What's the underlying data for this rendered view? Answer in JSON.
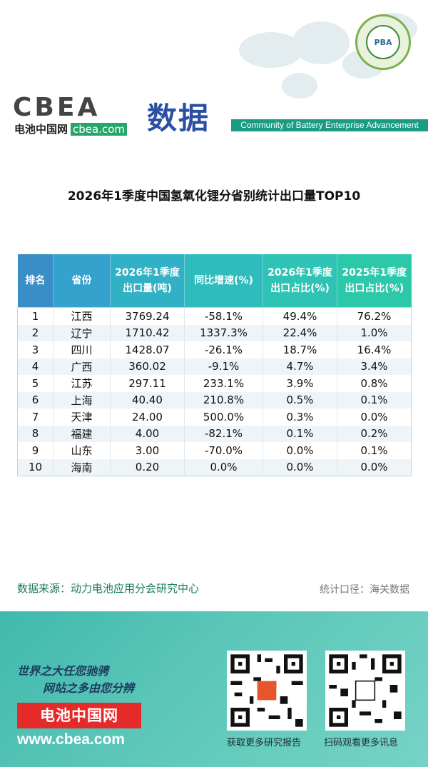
{
  "header": {
    "logo_text": "CBEA",
    "logo_cn": "电池中国网",
    "logo_domain": "cbea.com",
    "section_title": "数据",
    "community": "Community of Battery Enterprise Advancement",
    "badge_text": "PBA"
  },
  "title": "2026年1季度中国氢氧化锂分省别统计出口量TOP10",
  "table": {
    "headers": [
      "排名",
      "省份",
      "2026年1季度出口量(吨)",
      "同比增速(%)",
      "2026年1季度出口占比(%)",
      "2025年1季度出口占比(%)"
    ],
    "rows": [
      {
        "rank": "1",
        "province": "江西",
        "volume": "3769.24",
        "yoy": "-58.1%",
        "share_2026": "49.4%",
        "share_2025": "76.2%"
      },
      {
        "rank": "2",
        "province": "辽宁",
        "volume": "1710.42",
        "yoy": "1337.3%",
        "share_2026": "22.4%",
        "share_2025": "1.0%"
      },
      {
        "rank": "3",
        "province": "四川",
        "volume": "1428.07",
        "yoy": "-26.1%",
        "share_2026": "18.7%",
        "share_2025": "16.4%"
      },
      {
        "rank": "4",
        "province": "广西",
        "volume": "360.02",
        "yoy": "-9.1%",
        "share_2026": "4.7%",
        "share_2025": "3.4%"
      },
      {
        "rank": "5",
        "province": "江苏",
        "volume": "297.11",
        "yoy": "233.1%",
        "share_2026": "3.9%",
        "share_2025": "0.8%"
      },
      {
        "rank": "6",
        "province": "上海",
        "volume": "40.40",
        "yoy": "210.8%",
        "share_2026": "0.5%",
        "share_2025": "0.1%"
      },
      {
        "rank": "7",
        "province": "天津",
        "volume": "24.00",
        "yoy": "500.0%",
        "share_2026": "0.3%",
        "share_2025": "0.0%"
      },
      {
        "rank": "8",
        "province": "福建",
        "volume": "4.00",
        "yoy": "-82.1%",
        "share_2026": "0.1%",
        "share_2025": "0.2%"
      },
      {
        "rank": "9",
        "province": "山东",
        "volume": "3.00",
        "yoy": "-70.0%",
        "share_2026": "0.0%",
        "share_2025": "0.1%"
      },
      {
        "rank": "10",
        "province": "海南",
        "volume": "0.20",
        "yoy": "0.0%",
        "share_2026": "0.0%",
        "share_2025": "0.0%"
      }
    ]
  },
  "source": "数据来源：动力电池应用分会研究中心",
  "caliber": "统计口径：海关数据",
  "footer": {
    "slogan_1": "世界之大任您驰骋",
    "slogan_2": "网站之多由您分辨",
    "brand": "电池中国网",
    "site": "www.cbea.com",
    "qr_caption_1": "获取更多研究报告",
    "qr_caption_2": "扫码观看更多讯息"
  },
  "colors": {
    "negative": "#2aa84a",
    "positive": "#e02a2a",
    "accent": "#1a9c82",
    "header_blue": "#38a6c8"
  }
}
